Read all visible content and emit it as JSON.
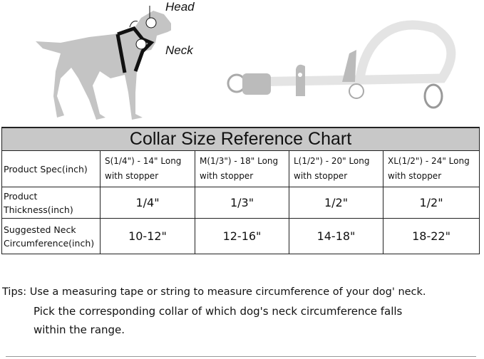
{
  "illustration": {
    "head_label": "Head",
    "neck_label": "Neck"
  },
  "table": {
    "title": "Collar Size Reference Chart",
    "rows": [
      {
        "header": "Product Spec(inch)",
        "cells": [
          [
            "S(1/4\") - 14\" Long",
            "with stopper"
          ],
          [
            "M(1/3\") - 18\" Long",
            "with stopper"
          ],
          [
            "L(1/2\") - 20\" Long",
            "with stopper"
          ],
          [
            "XL(1/2\") - 24\" Long",
            "with stopper"
          ]
        ]
      },
      {
        "header": [
          "Product",
          "Thickness(inch)"
        ],
        "cells": [
          "1/4\"",
          "1/3\"",
          "1/2\"",
          "1/2\""
        ]
      },
      {
        "header": [
          "Suggested  Neck",
          "Circumference(inch)"
        ],
        "cells": [
          "10-12\"",
          "12-16\"",
          "14-18\"",
          "18-22\""
        ]
      }
    ]
  },
  "tips": {
    "label": "Tips:",
    "line1": "Use a measuring tape or string to measure circumference of your dog' neck.",
    "line2": "Pick the corresponding collar of which dog's neck circumference falls",
    "line3": "within the range."
  }
}
